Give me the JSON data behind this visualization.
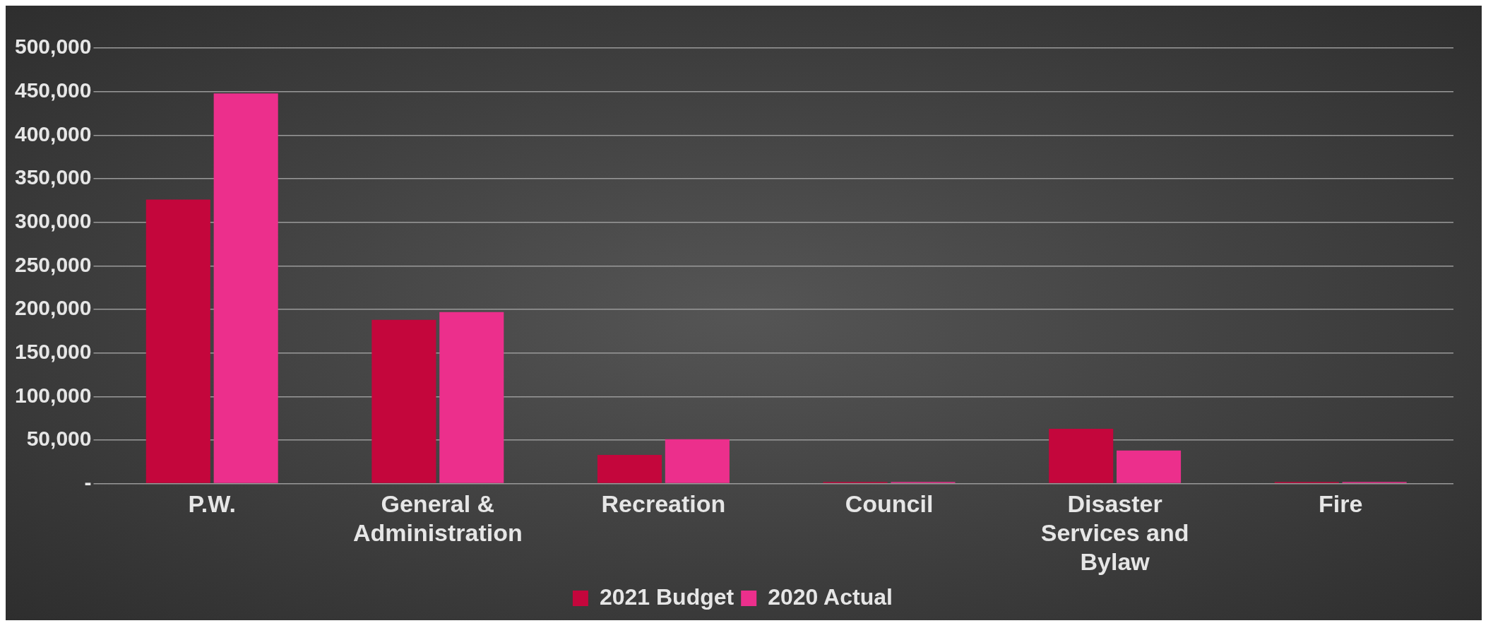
{
  "chart_data": {
    "type": "bar",
    "categories": [
      "P.W.",
      "General & Administration",
      "Recreation",
      "Council",
      "Disaster Services and Bylaw",
      "Fire"
    ],
    "series": [
      {
        "name": "2021 Budget",
        "color": "#c4063c",
        "values": [
          326000,
          188000,
          33000,
          2000,
          63000,
          2000
        ]
      },
      {
        "name": "2020 Actual",
        "color": "#ec2f8c",
        "values": [
          448000,
          197000,
          51000,
          2000,
          38000,
          2000
        ]
      }
    ],
    "ylim": [
      0,
      500000
    ],
    "yticks": [
      {
        "value": 0,
        "label": "-"
      },
      {
        "value": 50000,
        "label": "50,000"
      },
      {
        "value": 100000,
        "label": "100,000"
      },
      {
        "value": 150000,
        "label": "150,000"
      },
      {
        "value": 200000,
        "label": "200,000"
      },
      {
        "value": 250000,
        "label": "250,000"
      },
      {
        "value": 300000,
        "label": "300,000"
      },
      {
        "value": 350000,
        "label": "350,000"
      },
      {
        "value": 400000,
        "label": "400,000"
      },
      {
        "value": 450000,
        "label": "450,000"
      },
      {
        "value": 500000,
        "label": "500,000"
      }
    ],
    "grid": "y",
    "legend": "bottom"
  }
}
